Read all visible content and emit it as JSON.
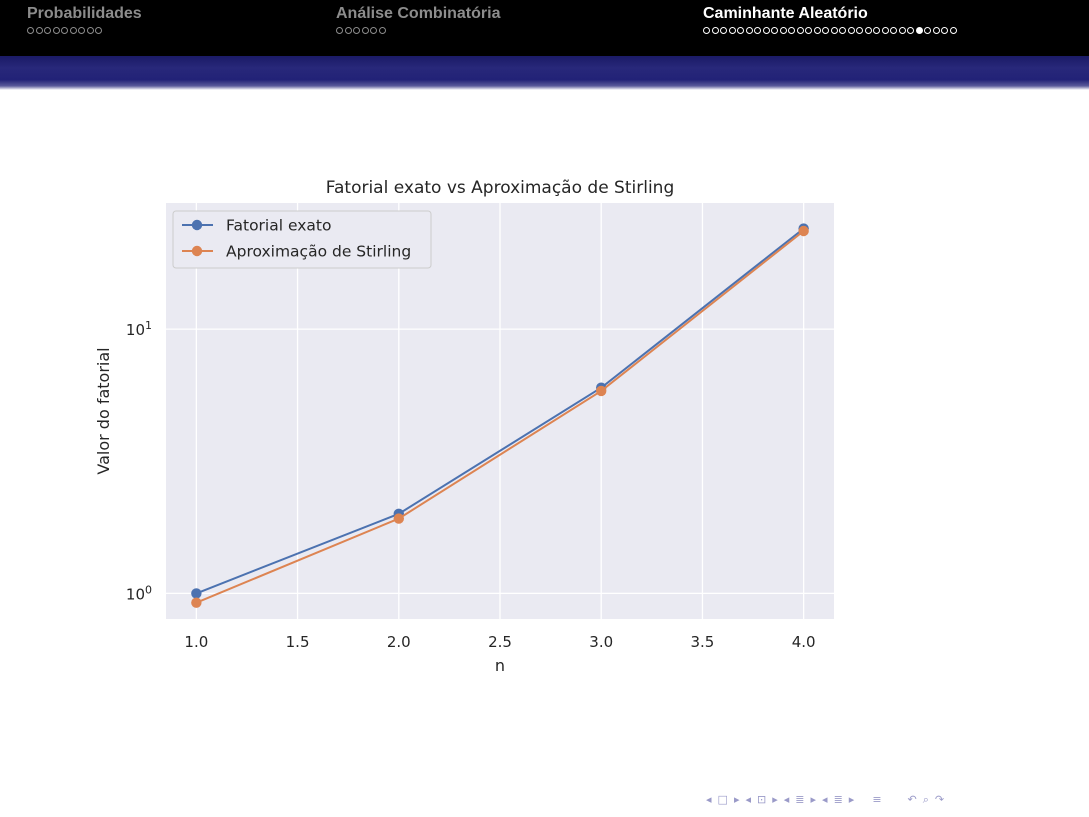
{
  "header": {
    "sections": [
      {
        "title": "Probabilidades",
        "dots": 9,
        "filled_index": -1,
        "active": false
      },
      {
        "title": "Análise Combinatória",
        "dots": 6,
        "filled_index": -1,
        "active": false
      },
      {
        "title": "Caminhante Aleatório",
        "dots": 30,
        "filled_index": 25,
        "active": true
      }
    ],
    "colors": {
      "bar": "#000000",
      "band": "#22227a"
    }
  },
  "chart_data": {
    "type": "line",
    "title": "Fatorial exato vs Aproximação de Stirling",
    "xlabel": "n",
    "ylabel": "Valor do fatorial",
    "yscale": "log",
    "grid": true,
    "legend_position": "top-left",
    "xlim": [
      0.85,
      4.15
    ],
    "ylim": [
      0.8,
      30
    ],
    "x_ticks": [
      "1.0",
      "1.5",
      "2.0",
      "2.5",
      "3.0",
      "3.5",
      "4.0"
    ],
    "y_ticks": [
      {
        "base": "10",
        "exp": "0"
      },
      {
        "base": "10",
        "exp": "1"
      }
    ],
    "x": [
      1,
      2,
      3,
      4
    ],
    "series": [
      {
        "name": "Fatorial exato",
        "color": "#4c72b0",
        "values": [
          1,
          2,
          6,
          24
        ]
      },
      {
        "name": "Aproximação de Stirling",
        "color": "#dd8452",
        "values": [
          0.922,
          1.919,
          5.836,
          23.506
        ]
      }
    ],
    "background": "#eaeaf2"
  },
  "nav": {
    "icons": [
      "arrow-left-icon",
      "frame-icon",
      "arrow-right-icon",
      "arrow-left-icon",
      "subsection-icon",
      "arrow-right-icon",
      "arrow-left-icon",
      "section-icon",
      "arrow-right-icon",
      "arrow-left-icon",
      "presentation-icon",
      "arrow-right-icon",
      "align-icon",
      "undo-icon",
      "search-icon",
      "redo-icon"
    ],
    "symbols": [
      "◂",
      "□",
      "▸",
      "◂",
      "⊡",
      "▸",
      "◂",
      "≣",
      "▸",
      "◂",
      "≣",
      "▸",
      "≡",
      "↶",
      "⌕",
      "↷"
    ]
  }
}
